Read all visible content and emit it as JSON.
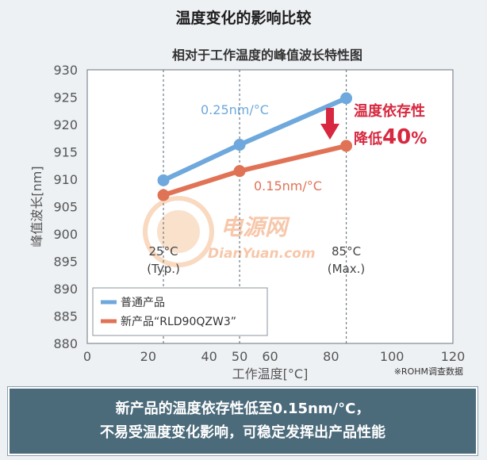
{
  "header": {
    "title": "温度变化的影响比较",
    "subtitle": "相对于工作温度的峰值波长特性图"
  },
  "chart_data": {
    "type": "line",
    "xlabel": "工作温度[°C]",
    "ylabel": "峰值波长[nm]",
    "xlim": [
      0,
      120
    ],
    "ylim": [
      880,
      930
    ],
    "xticks": [
      0,
      20,
      40,
      50,
      60,
      80,
      100,
      120
    ],
    "yticks": [
      880,
      885,
      890,
      895,
      900,
      905,
      910,
      915,
      920,
      925,
      930
    ],
    "grid": false,
    "legend": "bottom-left",
    "series": [
      {
        "name": "普通产品",
        "color": "#6ea8dc",
        "x": [
          25,
          50,
          85
        ],
        "y": [
          909.8,
          916.3,
          924.8
        ],
        "label": "0.25nm/°C"
      },
      {
        "name": "新产品“RLD90QZW3”",
        "color": "#e07356",
        "x": [
          25,
          50,
          85
        ],
        "y": [
          907.1,
          911.5,
          916.1
        ],
        "label": "0.15nm/°C"
      }
    ],
    "reference_lines": [
      {
        "x": 25,
        "label_line1": "25°C",
        "label_line2": "(Typ.)"
      },
      {
        "x": 50
      },
      {
        "x": 85,
        "label_line1": "85°C",
        "label_line2": "(Max.)"
      }
    ],
    "callout": {
      "line1": "温度依存性",
      "line2_prefix": "降低",
      "line2_number": "40",
      "line2_suffix": "%",
      "color": "#d7283f"
    },
    "arrow_color": "#d7283f"
  },
  "footnote": "※ROHM调查数据",
  "watermark": {
    "cn": "电源网",
    "en": "DianYuan.com"
  },
  "banner": {
    "line1": "新产品的温度依存性低至0.15nm/°C，",
    "line2": "不易受温度变化影响，可稳定发挥出产品性能"
  }
}
